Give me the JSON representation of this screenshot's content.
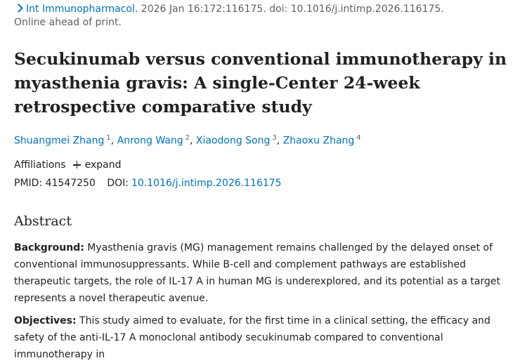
{
  "citation": {
    "journal": "Int Immunopharmacol.",
    "details": "2026 Jan 16:172:116175. doi: 10.1016/j.intimp.2026.116175.",
    "status": "Online ahead of print."
  },
  "title": "Secukinumab versus conventional immunotherapy in myasthenia gravis: A single-Center 24-week retrospective comparative study",
  "authors": [
    {
      "name": "Shuangmei Zhang",
      "sup": "1"
    },
    {
      "name": "Anrong Wang",
      "sup": "2"
    },
    {
      "name": "Xiaodong Song",
      "sup": "3"
    },
    {
      "name": "Zhaoxu Zhang",
      "sup": "4"
    }
  ],
  "affiliations": {
    "label": "Affiliations",
    "expand_label": "expand"
  },
  "identifiers": {
    "pmid_label": "PMID:",
    "pmid": "41547250",
    "doi_label": "DOI:",
    "doi": "10.1016/j.intimp.2026.116175"
  },
  "abstract": {
    "heading": "Abstract",
    "background_label": "Background:",
    "background_text": "Myasthenia gravis (MG) management remains challenged by the delayed onset of conventional immunosuppressants. While B-cell and complement pathways are established therapeutic targets, the role of IL-17 A in human MG is underexplored, and its potential as a target represents a novel therapeutic avenue.",
    "objectives_label": "Objectives:",
    "objectives_text": "This study aimed to evaluate, for the first time in a clinical setting, the efficacy and safety of the anti-IL-17 A monoclonal antibody secukinumab compared to conventional immunotherapy in"
  }
}
